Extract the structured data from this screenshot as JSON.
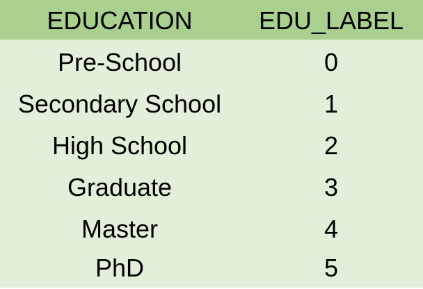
{
  "colors": {
    "header_bg": "#a9d08e",
    "body_bg": "#e2efda",
    "text": "#000000"
  },
  "table": {
    "columns": [
      "EDUCATION",
      "EDU_LABEL"
    ],
    "rows": [
      {
        "education": "Pre-School",
        "label": "0"
      },
      {
        "education": "Secondary School",
        "label": "1"
      },
      {
        "education": "High School",
        "label": "2"
      },
      {
        "education": "Graduate",
        "label": "3"
      },
      {
        "education": "Master",
        "label": "4"
      },
      {
        "education": "PhD",
        "label": "5"
      }
    ]
  }
}
